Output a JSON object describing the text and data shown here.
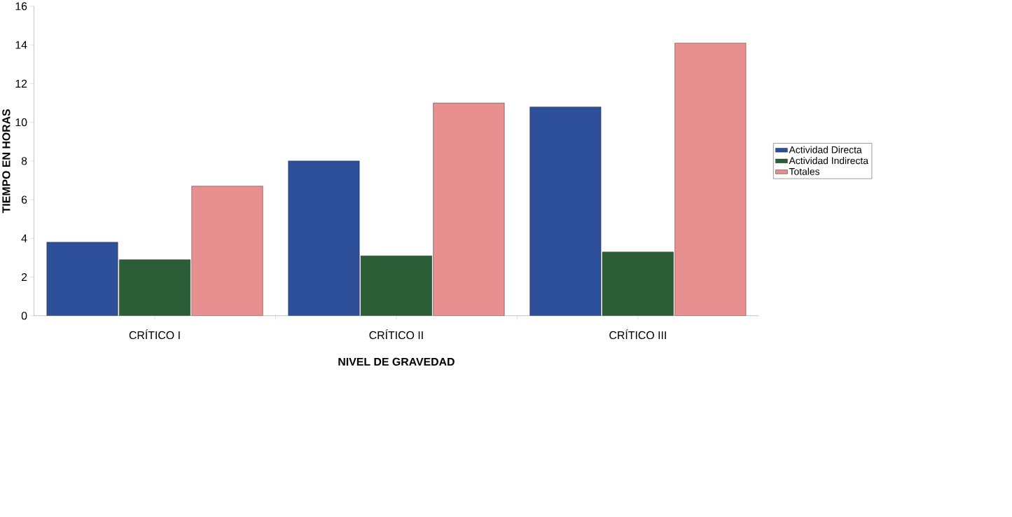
{
  "chart_data": {
    "type": "bar",
    "xlabel": "NIVEL DE GRAVEDAD",
    "ylabel": "TIEMPO EN HORAS",
    "categories": [
      "CRÍTICO I",
      "CRÍTICO II",
      "CRÍTICO III"
    ],
    "series": [
      {
        "name": "Actividad Directa",
        "color": "#2e4f9a",
        "values": [
          3.8,
          8.0,
          10.8
        ]
      },
      {
        "name": "Actividad Indirecta",
        "color": "#2b5e36",
        "values": [
          2.9,
          3.1,
          3.3
        ]
      },
      {
        "name": "Totales",
        "color": "#e8908f",
        "values": [
          6.7,
          11.0,
          14.1
        ]
      }
    ],
    "ylim": [
      0,
      16
    ],
    "yticks": [
      0,
      2,
      4,
      6,
      8,
      10,
      12,
      14,
      16
    ],
    "grid": false,
    "legend": "right"
  }
}
